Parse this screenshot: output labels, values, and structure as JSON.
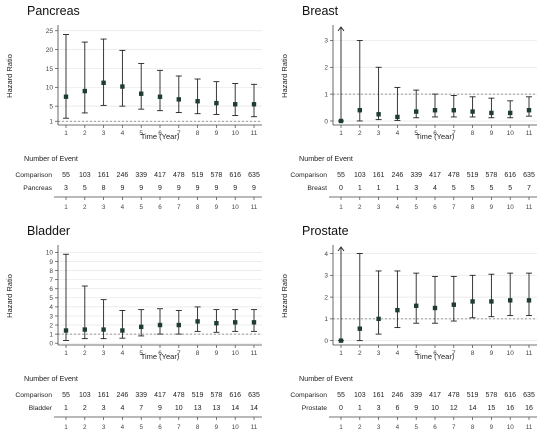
{
  "chart_data": [
    {
      "type": "scatter",
      "title": "Pancreas",
      "xlabel": "Time (Year)",
      "ylabel": "Hazard Ratio",
      "x": [
        1,
        2,
        3,
        4,
        5,
        6,
        7,
        8,
        9,
        10,
        11
      ],
      "estimate": [
        7.5,
        9.0,
        11.2,
        10.2,
        8.3,
        7.5,
        6.8,
        6.3,
        5.8,
        5.5,
        5.5
      ],
      "lower": [
        1.8,
        3.2,
        5.2,
        5.0,
        4.2,
        3.8,
        3.3,
        3.0,
        2.8,
        2.5,
        2.2
      ],
      "upper": [
        24.0,
        22.0,
        22.8,
        19.8,
        16.3,
        14.5,
        13.0,
        12.2,
        11.5,
        11.0,
        10.8
      ],
      "ylim": [
        0,
        26
      ],
      "yticks": [
        1,
        5,
        10,
        15,
        20,
        25
      ],
      "reference_line": 1,
      "arrow_up": [],
      "table_title": "Number of Event",
      "table_rows": [
        {
          "label": "Comparison",
          "values": [
            "55",
            "103",
            "161",
            "246",
            "339",
            "417",
            "478",
            "519",
            "578",
            "616",
            "635"
          ]
        },
        {
          "label": "Pancreas",
          "values": [
            "3",
            "5",
            "8",
            "9",
            "9",
            "9",
            "9",
            "9",
            "9",
            "9",
            "9"
          ]
        }
      ],
      "table_xticks": [
        "1",
        "2",
        "3",
        "4",
        "5",
        "6",
        "7",
        "8",
        "9",
        "10",
        "11"
      ]
    },
    {
      "type": "scatter",
      "title": "Breast",
      "xlabel": "Time (Year)",
      "ylabel": "Hazard Ratio",
      "x": [
        1,
        2,
        3,
        4,
        5,
        6,
        7,
        8,
        9,
        10,
        11
      ],
      "estimate": [
        0.0,
        0.4,
        0.25,
        0.15,
        0.35,
        0.4,
        0.4,
        0.35,
        0.3,
        0.3,
        0.4
      ],
      "lower": [
        0.0,
        0.0,
        0.05,
        0.02,
        0.12,
        0.15,
        0.15,
        0.15,
        0.12,
        0.12,
        0.18
      ],
      "upper": [
        3.5,
        3.0,
        2.0,
        1.25,
        1.15,
        1.0,
        0.95,
        0.9,
        0.85,
        0.75,
        0.9
      ],
      "ylim": [
        -0.15,
        3.5
      ],
      "yticks": [
        0,
        1,
        2,
        3
      ],
      "reference_line": 1,
      "arrow_up": [
        1
      ],
      "table_title": "Number of Event",
      "table_rows": [
        {
          "label": "Comparison",
          "values": [
            "55",
            "103",
            "161",
            "246",
            "339",
            "417",
            "478",
            "519",
            "578",
            "616",
            "635"
          ]
        },
        {
          "label": "Breast",
          "values": [
            "0",
            "1",
            "1",
            "1",
            "3",
            "4",
            "5",
            "5",
            "5",
            "5",
            "7"
          ]
        }
      ],
      "table_xticks": [
        "1",
        "2",
        "3",
        "4",
        "5",
        "6",
        "7",
        "8",
        "9",
        "10",
        "11"
      ]
    },
    {
      "type": "scatter",
      "title": "Bladder",
      "xlabel": "Time (Year)",
      "ylabel": "Hazard Ratio",
      "x": [
        1,
        2,
        3,
        4,
        5,
        6,
        7,
        8,
        9,
        10,
        11
      ],
      "estimate": [
        1.4,
        1.5,
        1.5,
        1.4,
        1.8,
        2.0,
        2.0,
        2.4,
        2.2,
        2.3,
        2.3
      ],
      "lower": [
        0.3,
        0.5,
        0.5,
        0.55,
        0.8,
        1.0,
        1.0,
        1.3,
        1.2,
        1.3,
        1.3
      ],
      "upper": [
        9.8,
        6.3,
        4.8,
        3.6,
        3.7,
        3.8,
        3.6,
        4.0,
        3.7,
        3.7,
        3.7
      ],
      "ylim": [
        -0.2,
        10.6
      ],
      "yticks": [
        0,
        1,
        2,
        3,
        4,
        5,
        6,
        7,
        8,
        9,
        10
      ],
      "reference_line": 1,
      "arrow_up": [],
      "table_title": "Number of Event",
      "table_rows": [
        {
          "label": "Comparison",
          "values": [
            "55",
            "103",
            "161",
            "246",
            "339",
            "417",
            "478",
            "519",
            "578",
            "616",
            "635"
          ]
        },
        {
          "label": "Bladder",
          "values": [
            "1",
            "2",
            "3",
            "4",
            "7",
            "9",
            "10",
            "13",
            "13",
            "14",
            "14"
          ]
        }
      ],
      "table_xticks": [
        "1",
        "2",
        "3",
        "4",
        "5",
        "6",
        "7",
        "8",
        "9",
        "10",
        "11"
      ]
    },
    {
      "type": "scatter",
      "title": "Prostate",
      "xlabel": "Time (Year)",
      "ylabel": "Hazard Ratio",
      "x": [
        1,
        2,
        3,
        4,
        5,
        6,
        7,
        8,
        9,
        10,
        11
      ],
      "estimate": [
        0.0,
        0.55,
        1.0,
        1.4,
        1.6,
        1.5,
        1.65,
        1.8,
        1.8,
        1.85,
        1.85
      ],
      "lower": [
        0.0,
        0.0,
        0.3,
        0.6,
        0.8,
        0.8,
        0.9,
        1.05,
        1.1,
        1.15,
        1.15
      ],
      "upper": [
        4.3,
        4.0,
        3.2,
        3.2,
        3.1,
        2.95,
        2.95,
        3.0,
        3.05,
        3.1,
        3.1
      ],
      "ylim": [
        -0.2,
        4.3
      ],
      "yticks": [
        0,
        1,
        2,
        3,
        4
      ],
      "reference_line": 1,
      "arrow_up": [
        1
      ],
      "table_title": "Number of Event",
      "table_rows": [
        {
          "label": "Comparison",
          "values": [
            "55",
            "103",
            "161",
            "246",
            "339",
            "417",
            "478",
            "519",
            "578",
            "616",
            "635"
          ]
        },
        {
          "label": "Prostate",
          "values": [
            "0",
            "1",
            "3",
            "6",
            "9",
            "10",
            "12",
            "14",
            "15",
            "16",
            "16"
          ]
        }
      ],
      "table_xticks": [
        "1",
        "2",
        "3",
        "4",
        "5",
        "6",
        "7",
        "8",
        "9",
        "10",
        "11"
      ]
    }
  ]
}
